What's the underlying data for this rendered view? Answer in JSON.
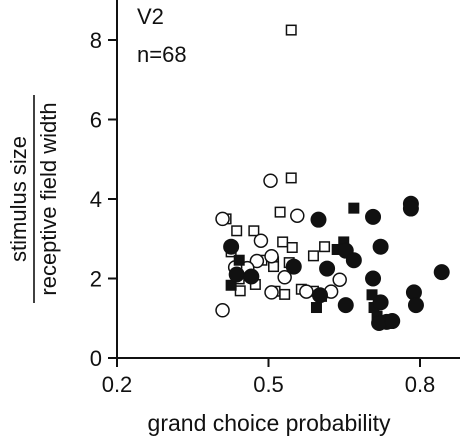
{
  "chart_data": {
    "type": "scatter",
    "panel_label": "V2",
    "annotation": "n=68",
    "xlabel": "grand choice probability",
    "ylabel_top": "stimulus size",
    "ylabel_bottom": "receptive field width",
    "xlim": [
      0.2,
      0.87
    ],
    "ylim": [
      0,
      8.8
    ],
    "x_ticks": [
      {
        "value": 0.2,
        "label": "0.2"
      },
      {
        "value": 0.5,
        "label": "0.5"
      },
      {
        "value": 0.8,
        "label": "0.8"
      }
    ],
    "y_ticks": [
      {
        "value": 0,
        "label": "0"
      },
      {
        "value": 2,
        "label": "2"
      },
      {
        "value": 4,
        "label": "4"
      },
      {
        "value": 6,
        "label": "6"
      },
      {
        "value": 8,
        "label": "8"
      }
    ],
    "marker_legend": {
      "note": "marker shape/fill encodes cell group; open vs filled indicates significance (not labeled in figure)"
    },
    "series": [
      {
        "marker": "open-square",
        "points": [
          [
            0.545,
            8.25
          ],
          [
            0.545,
            4.53
          ],
          [
            0.523,
            3.67
          ],
          [
            0.416,
            3.5
          ],
          [
            0.437,
            3.2
          ],
          [
            0.471,
            3.2
          ],
          [
            0.528,
            2.92
          ],
          [
            0.547,
            2.78
          ],
          [
            0.611,
            2.8
          ],
          [
            0.589,
            2.57
          ],
          [
            0.426,
            2.67
          ],
          [
            0.487,
            2.46
          ],
          [
            0.51,
            2.42
          ],
          [
            0.51,
            2.3
          ],
          [
            0.541,
            2.4
          ],
          [
            0.442,
            1.99
          ],
          [
            0.474,
            1.85
          ],
          [
            0.444,
            1.69
          ],
          [
            0.532,
            1.6
          ],
          [
            0.513,
            1.68
          ],
          [
            0.565,
            1.73
          ],
          [
            0.589,
            1.68
          ]
        ]
      },
      {
        "marker": "open-circle",
        "points": [
          [
            0.409,
            1.2
          ],
          [
            0.504,
            4.46
          ],
          [
            0.557,
            3.58
          ],
          [
            0.409,
            3.5
          ],
          [
            0.485,
            2.95
          ],
          [
            0.477,
            2.44
          ],
          [
            0.458,
            2.26
          ],
          [
            0.434,
            2.28
          ],
          [
            0.506,
            2.56
          ],
          [
            0.532,
            2.03
          ],
          [
            0.641,
            1.97
          ],
          [
            0.506,
            1.65
          ],
          [
            0.624,
            1.67
          ],
          [
            0.575,
            1.67
          ]
        ]
      },
      {
        "marker": "filled-square",
        "points": [
          [
            0.669,
            3.77
          ],
          [
            0.649,
            2.92
          ],
          [
            0.636,
            2.73
          ],
          [
            0.442,
            2.46
          ],
          [
            0.426,
            1.83
          ],
          [
            0.605,
            1.55
          ],
          [
            0.705,
            1.59
          ],
          [
            0.595,
            1.27
          ],
          [
            0.709,
            1.27
          ],
          [
            0.715,
            1.05
          ]
        ]
      },
      {
        "marker": "filled-circle",
        "points": [
          [
            0.426,
            2.8
          ],
          [
            0.599,
            3.48
          ],
          [
            0.707,
            3.55
          ],
          [
            0.782,
            3.88
          ],
          [
            0.782,
            3.76
          ],
          [
            0.653,
            2.7
          ],
          [
            0.722,
            2.8
          ],
          [
            0.669,
            2.46
          ],
          [
            0.616,
            2.25
          ],
          [
            0.707,
            2.0
          ],
          [
            0.843,
            2.16
          ],
          [
            0.602,
            1.58
          ],
          [
            0.788,
            1.65
          ],
          [
            0.653,
            1.33
          ],
          [
            0.792,
            1.33
          ],
          [
            0.722,
            1.4
          ],
          [
            0.734,
            0.91
          ],
          [
            0.719,
            0.88
          ],
          [
            0.745,
            0.93
          ],
          [
            0.437,
            2.1
          ],
          [
            0.466,
            2.05
          ],
          [
            0.55,
            2.3
          ]
        ]
      }
    ]
  }
}
